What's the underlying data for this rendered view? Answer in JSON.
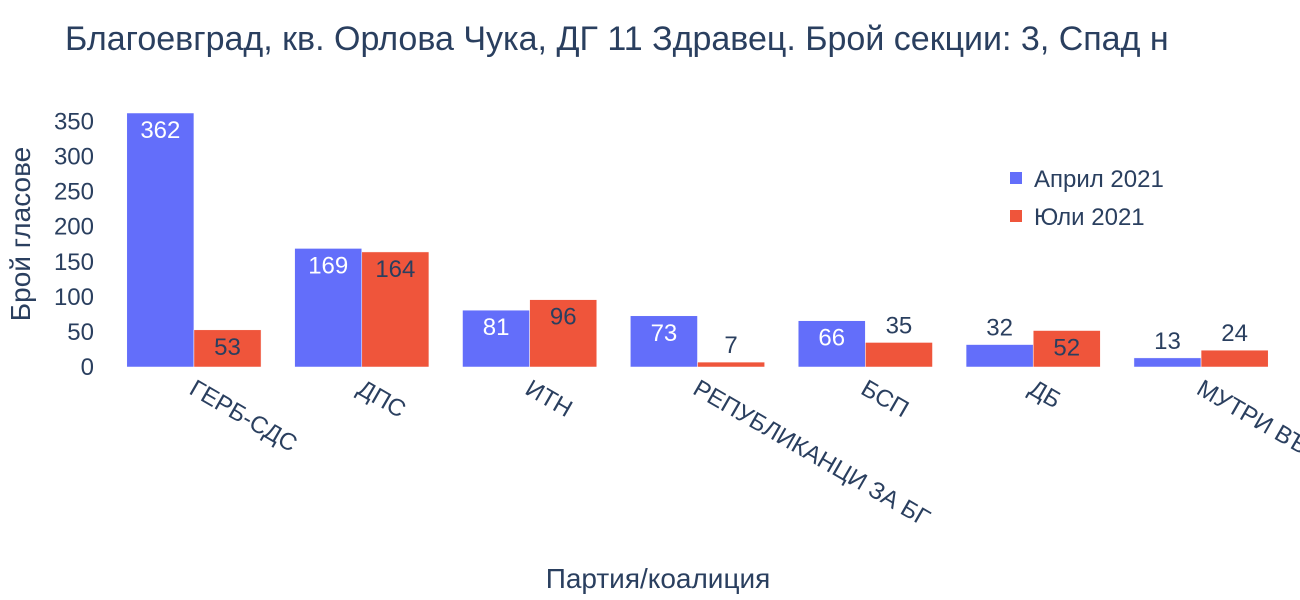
{
  "chart_data": {
    "type": "bar",
    "title": "Благоевград, кв. Орлова Чука, ДГ 11 Здравец. Брой секции: 3,  Спад н",
    "xlabel": "Партия/коалиция",
    "ylabel": "Брой гласове",
    "categories": [
      "ГЕРБ-СДС",
      "ДПС",
      "ИТН",
      "РЕПУБЛИКАНЦИ ЗА БГ",
      "БСП",
      "ДБ",
      "МУТРИ ВЪН!"
    ],
    "series": [
      {
        "name": "Април 2021",
        "color": "#636efa",
        "values": [
          362,
          169,
          81,
          73,
          66,
          32,
          13
        ]
      },
      {
        "name": "Юли 2021",
        "color": "#ef553b",
        "values": [
          53,
          164,
          96,
          7,
          35,
          52,
          24
        ]
      }
    ],
    "ylim": [
      0,
      362
    ],
    "yticks": [
      0,
      50,
      100,
      150,
      200,
      250,
      300,
      350
    ],
    "legend_position": "top-right",
    "grid": false
  }
}
